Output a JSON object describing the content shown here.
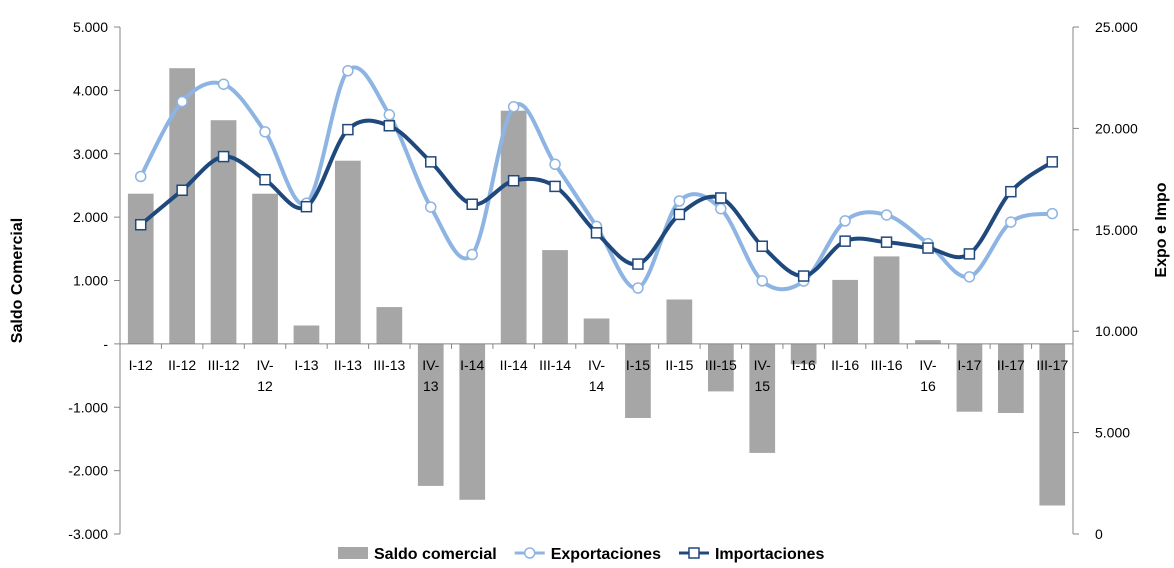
{
  "chart_data": {
    "type": "bar",
    "categories": [
      "I-12",
      "II-12",
      "III-12",
      "IV-12",
      "I-13",
      "II-13",
      "III-13",
      "IV-13",
      "I-14",
      "II-14",
      "III-14",
      "IV-14",
      "I-15",
      "II-15",
      "III-15",
      "IV-15",
      "I-16",
      "II-16",
      "III-16",
      "IV-16",
      "I-17",
      "II-17",
      "III-17"
    ],
    "category_label_lines": [
      [
        "I-12"
      ],
      [
        "II-12"
      ],
      [
        "III-12"
      ],
      [
        "IV-",
        "12"
      ],
      [
        "I-13"
      ],
      [
        "II-13"
      ],
      [
        "III-13"
      ],
      [
        "IV-",
        "13"
      ],
      [
        "I-14"
      ],
      [
        "II-14"
      ],
      [
        "III-14"
      ],
      [
        "IV-",
        "14"
      ],
      [
        "I-15"
      ],
      [
        "II-15"
      ],
      [
        "III-15"
      ],
      [
        "IV-",
        "15"
      ],
      [
        "I-16"
      ],
      [
        "II-16"
      ],
      [
        "III-16"
      ],
      [
        "IV-",
        "16"
      ],
      [
        "I-17"
      ],
      [
        "II-17"
      ],
      [
        "III-17"
      ]
    ],
    "series": [
      {
        "name": "Saldo comercial",
        "type": "bar",
        "axis": "left",
        "color": "#a6a6a6",
        "values": [
          2370,
          4350,
          3530,
          2370,
          290,
          2890,
          580,
          -2240,
          -2460,
          3680,
          1480,
          400,
          -1170,
          700,
          -750,
          -1720,
          -320,
          1010,
          1380,
          60,
          -1070,
          -1090,
          -2550
        ]
      },
      {
        "name": "Exportaciones",
        "type": "line",
        "axis": "right",
        "color": "#8db4e2",
        "marker": "circle",
        "values": [
          17630,
          21320,
          22180,
          19830,
          16310,
          22840,
          20670,
          16120,
          13780,
          21070,
          18230,
          15170,
          12130,
          16420,
          16040,
          12480,
          12470,
          15440,
          15730,
          14320,
          12680,
          15380,
          15800
        ]
      },
      {
        "name": "Importaciones",
        "type": "line",
        "axis": "right",
        "color": "#1f497d",
        "marker": "square",
        "values": [
          15250,
          16950,
          18610,
          17470,
          16140,
          19940,
          20130,
          18350,
          16260,
          17420,
          17140,
          14850,
          13310,
          15760,
          16570,
          14190,
          12720,
          14440,
          14390,
          14100,
          13810,
          16880,
          18350
        ]
      }
    ],
    "y_left": {
      "label": "Saldo Comercial",
      "min": -3000,
      "max": 5000,
      "step": 1000,
      "tick_labels": [
        "-3.000",
        "-2.000",
        "-1.000",
        "-",
        "1.000",
        "2.000",
        "3.000",
        "4.000",
        "5.000"
      ]
    },
    "y_right": {
      "label": "Expo e Impo",
      "min": 0,
      "max": 25000,
      "step": 5000,
      "tick_labels": [
        "0",
        "5.000",
        "10.000",
        "15.000",
        "20.000",
        "25.000"
      ]
    },
    "grid": false,
    "legend_position": "bottom"
  }
}
